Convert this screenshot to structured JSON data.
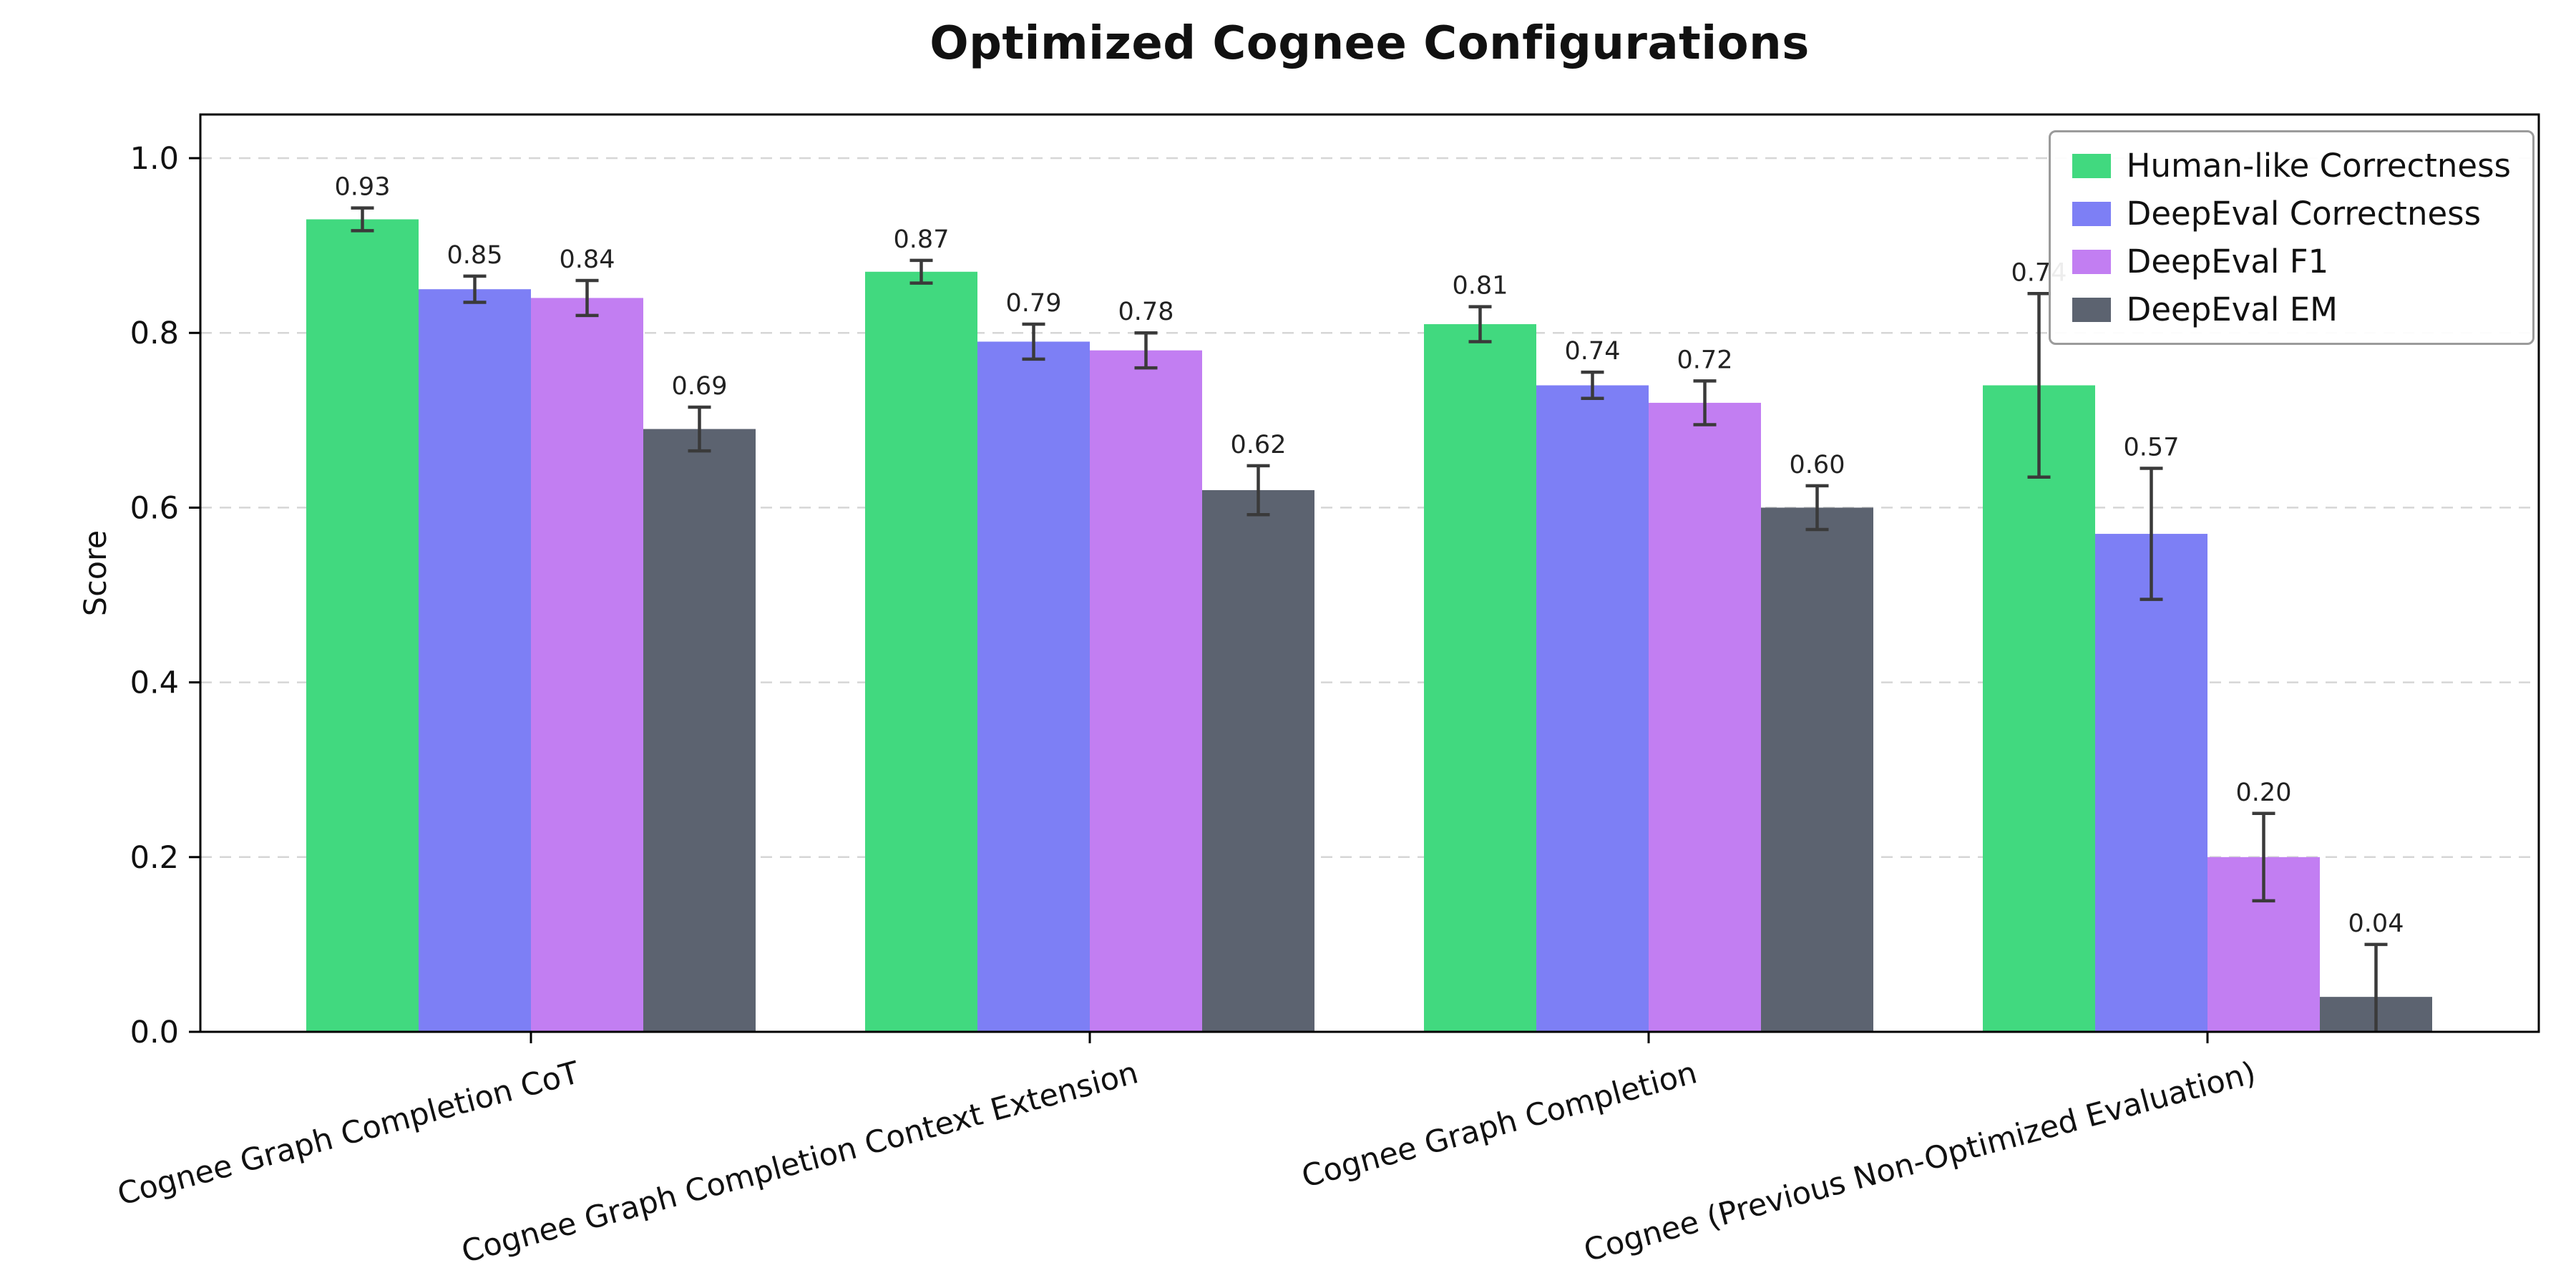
{
  "chart_data": {
    "type": "bar",
    "title": "Optimized Cognee Configurations",
    "xlabel": "",
    "ylabel": "Score",
    "ylim": [
      0,
      1.05
    ],
    "yticks": [
      0.0,
      0.2,
      0.4,
      0.6,
      0.8,
      1.0
    ],
    "grid": "horizontal dashed gridlines",
    "legend_position": "upper right",
    "error_bar_color": "#3a3a3a",
    "value_label_decimals": 2,
    "categories": [
      "Cognee Graph Completion CoT",
      "Cognee Graph Completion Context Extension",
      "Cognee Graph Completion",
      "Cognee (Previous Non-Optimized Evaluation)"
    ],
    "series": [
      {
        "name": "Human-like Correctness",
        "color": "#41d97f",
        "values": [
          0.93,
          0.87,
          0.81,
          0.74
        ],
        "errors": [
          0.013,
          0.013,
          0.02,
          0.105
        ]
      },
      {
        "name": "DeepEval Correctness",
        "color": "#7d7ff5",
        "values": [
          0.85,
          0.79,
          0.74,
          0.57
        ],
        "errors": [
          0.015,
          0.02,
          0.015,
          0.075
        ]
      },
      {
        "name": "DeepEval F1",
        "color": "#c27ef2",
        "values": [
          0.84,
          0.78,
          0.72,
          0.2
        ],
        "errors": [
          0.02,
          0.02,
          0.025,
          0.05
        ]
      },
      {
        "name": "DeepEval EM",
        "color": "#5c6370",
        "values": [
          0.69,
          0.62,
          0.6,
          0.04
        ],
        "errors": [
          0.025,
          0.028,
          0.025,
          0.06
        ]
      }
    ]
  }
}
